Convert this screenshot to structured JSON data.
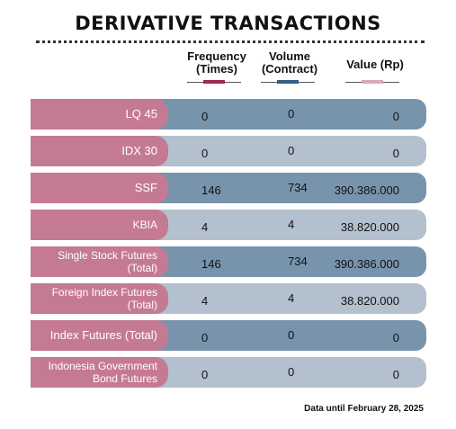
{
  "title": "DERIVATIVE TRANSACTIONS",
  "colors": {
    "label_bg": "#c57a93",
    "row_dark": "#7894ad",
    "row_light": "#b3c0cd",
    "frequency_swatch": "#9e2a4c",
    "volume_swatch": "#2f5f86",
    "value_swatch": "#d9a7bd"
  },
  "columns": {
    "frequency": {
      "line1": "Frequency",
      "line2": "(Times)"
    },
    "volume": {
      "line1": "Volume",
      "line2": "(Contract)"
    },
    "value": {
      "line1": "Value (Rp)",
      "line2": ""
    }
  },
  "rows": [
    {
      "label1": "LQ 45",
      "label2": "",
      "frequency": "0",
      "volume": "0",
      "value": "0"
    },
    {
      "label1": "IDX 30",
      "label2": "",
      "frequency": "0",
      "volume": "0",
      "value": "0"
    },
    {
      "label1": "SSF",
      "label2": "",
      "frequency": "146",
      "volume": "734",
      "value": "390.386.000"
    },
    {
      "label1": "KBIA",
      "label2": "",
      "frequency": "4",
      "volume": "4",
      "value": "38.820.000"
    },
    {
      "label1": "Single Stock Futures",
      "label2": "(Total)",
      "frequency": "146",
      "volume": "734",
      "value": "390.386.000"
    },
    {
      "label1": "Foreign Index Futures",
      "label2": "(Total)",
      "frequency": "4",
      "volume": "4",
      "value": "38.820.000"
    },
    {
      "label1": "Index Futures (Total)",
      "label2": "",
      "frequency": "0",
      "volume": "0",
      "value": "0"
    },
    {
      "label1": "Indonesia Government",
      "label2": "Bond Futures",
      "frequency": "0",
      "volume": "0",
      "value": "0"
    }
  ],
  "footnote": "Data until February 28, 2025"
}
